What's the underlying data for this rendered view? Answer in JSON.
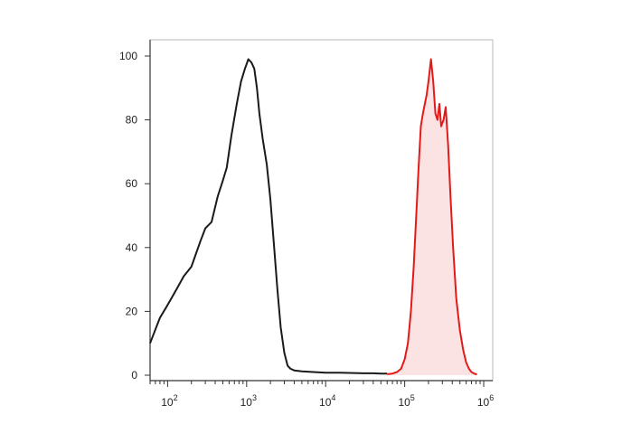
{
  "chart_data": {
    "type": "area",
    "title": "",
    "xlabel": "",
    "ylabel": "",
    "x_scale": "log",
    "xlim": [
      60,
      1300000
    ],
    "ylim": [
      0,
      105
    ],
    "grid": false,
    "legend": "none",
    "y_ticks": [
      {
        "value": 0,
        "label": "0"
      },
      {
        "value": 20,
        "label": "20"
      },
      {
        "value": 40,
        "label": "40"
      },
      {
        "value": 60,
        "label": "60"
      },
      {
        "value": 80,
        "label": "80"
      },
      {
        "value": 100,
        "label": "100"
      }
    ],
    "x_ticks": [
      {
        "value": 100,
        "base": "10",
        "exp": "2"
      },
      {
        "value": 1000,
        "base": "10",
        "exp": "3"
      },
      {
        "value": 10000,
        "base": "10",
        "exp": "4"
      },
      {
        "value": 100000,
        "base": "10",
        "exp": "5"
      },
      {
        "value": 1000000,
        "base": "10",
        "exp": "6"
      }
    ],
    "series": [
      {
        "color": "#1a1a1a",
        "fill": "none",
        "x": [
          60,
          80,
          100,
          130,
          160,
          200,
          260,
          300,
          360,
          430,
          500,
          560,
          640,
          750,
          850,
          950,
          1050,
          1150,
          1250,
          1350,
          1450,
          1600,
          1800,
          2000,
          2200,
          2450,
          2700,
          3000,
          3300,
          3600,
          4000,
          5000,
          7000,
          10000,
          15000,
          20000,
          30000,
          40000,
          50000,
          60000
        ],
        "y": [
          10,
          18,
          22,
          27,
          31,
          34,
          42,
          46,
          48,
          56,
          61,
          65,
          75,
          85,
          92,
          96,
          99,
          98,
          96,
          90,
          82,
          74,
          66,
          55,
          42,
          27,
          15,
          7,
          3,
          2,
          1.5,
          1.2,
          1,
          0.8,
          0.8,
          0.7,
          0.6,
          0.6,
          0.5,
          0.5
        ]
      },
      {
        "color": "#e31a1a",
        "fill": "#fbe3e3",
        "x": [
          60000,
          70000,
          80000,
          90000,
          100000,
          110000,
          120000,
          130000,
          140000,
          150000,
          160000,
          170000,
          180000,
          190000,
          200000,
          215000,
          230000,
          245000,
          260000,
          275000,
          290000,
          310000,
          330000,
          355000,
          380000,
          410000,
          450000,
          500000,
          550000,
          600000,
          650000,
          700000,
          760000,
          820000
        ],
        "y": [
          0.3,
          0.5,
          1,
          2,
          5,
          10,
          20,
          34,
          50,
          65,
          78,
          82,
          85,
          88,
          92,
          99,
          92,
          82,
          80,
          85,
          78,
          80,
          84,
          72,
          56,
          40,
          24,
          14,
          8,
          4,
          2,
          1,
          0.5,
          0.2
        ]
      }
    ]
  }
}
